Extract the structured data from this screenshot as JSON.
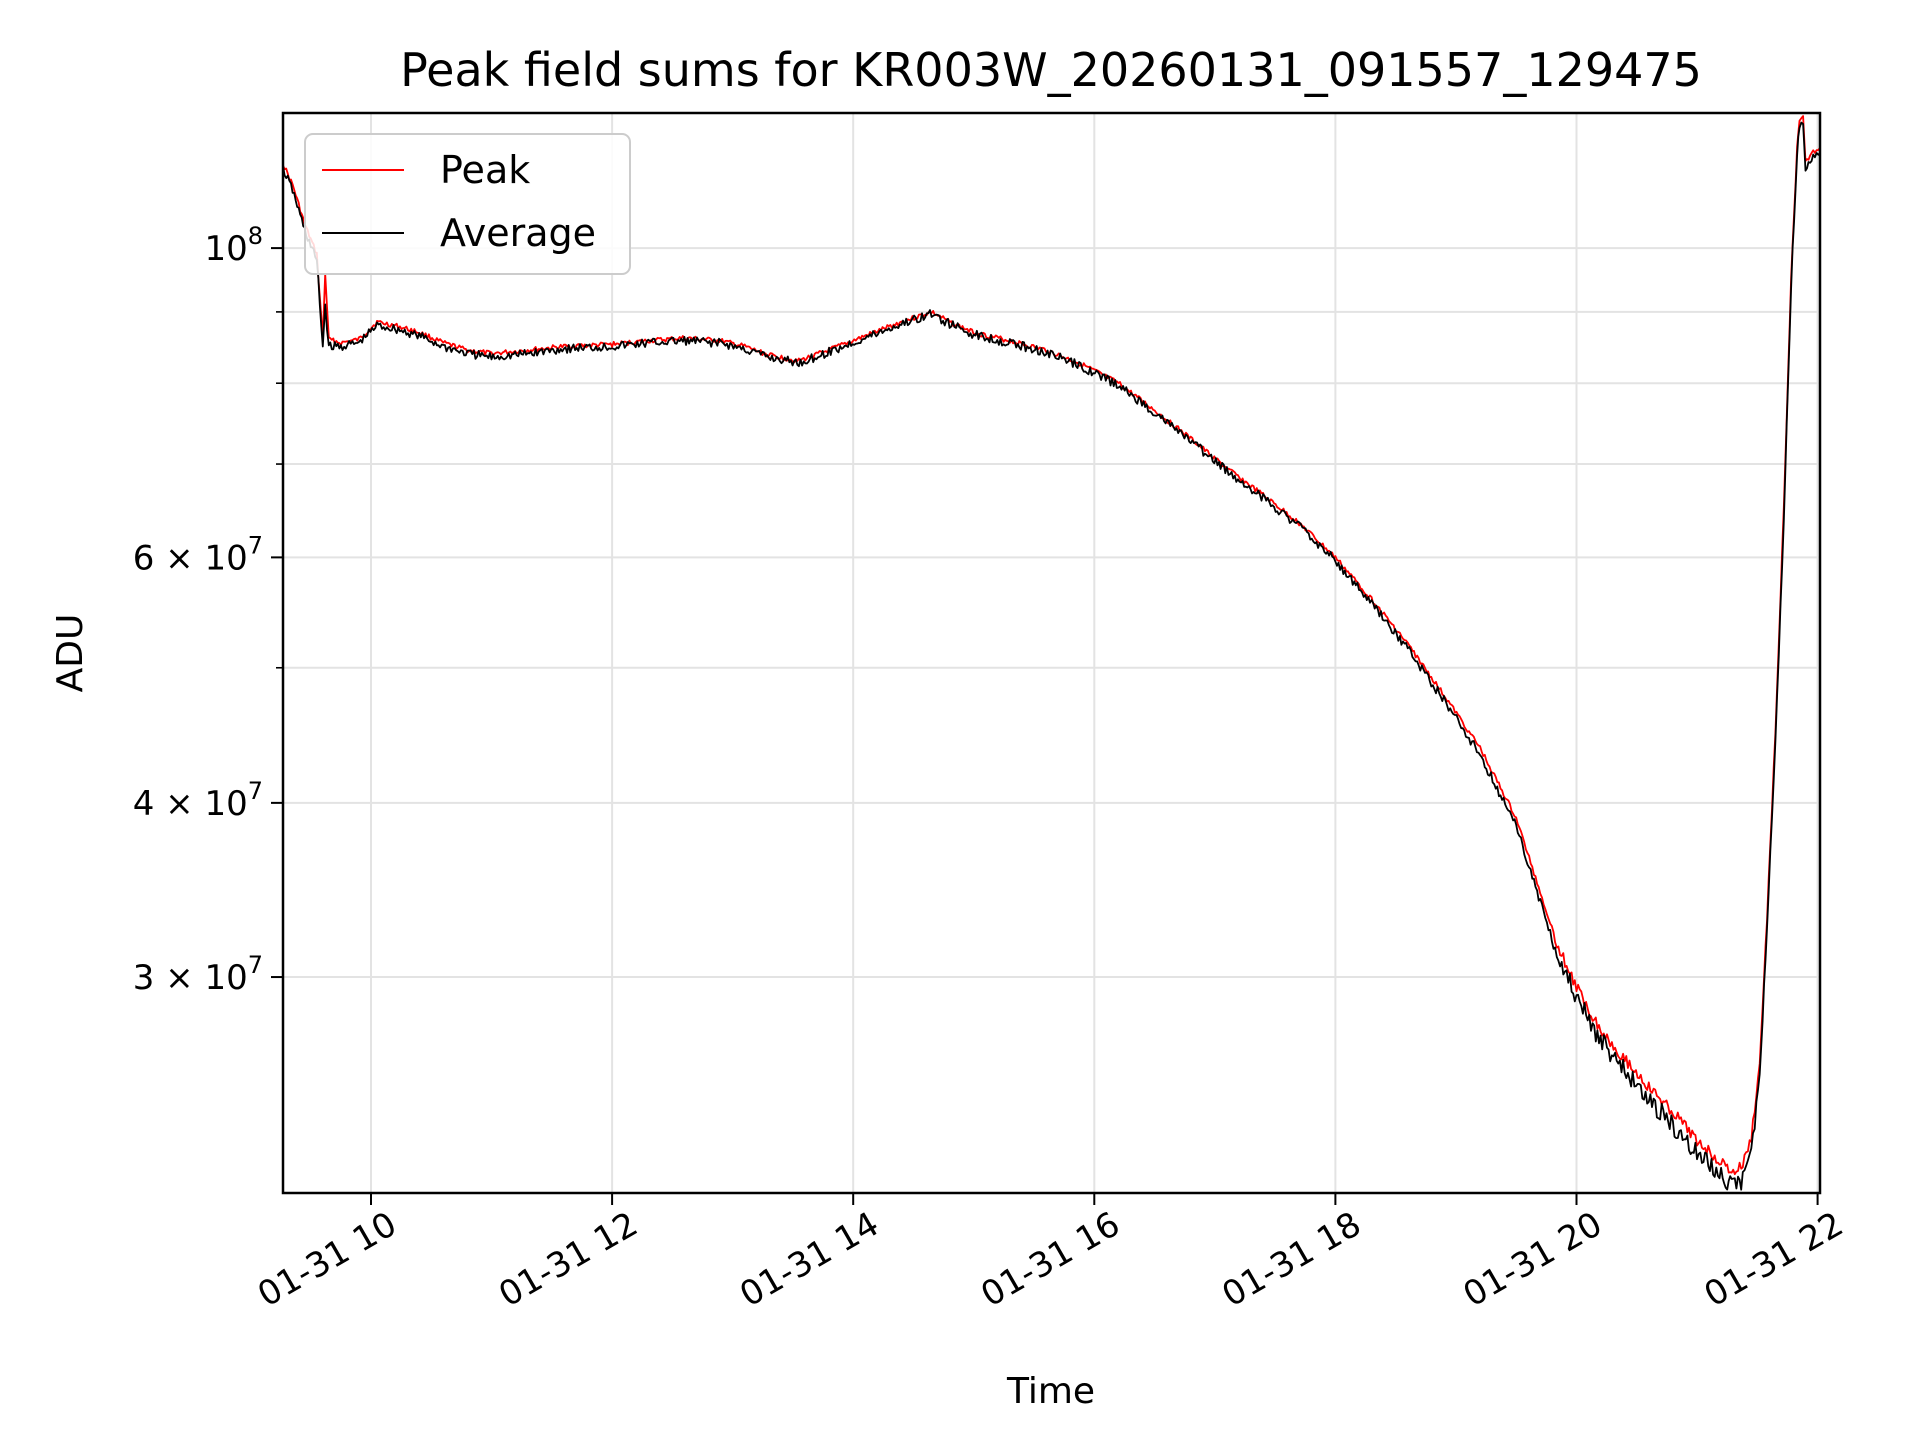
{
  "chart_data": {
    "type": "line",
    "title": "Peak field sums for KR003W_20260131_091557_129475",
    "xlabel": "Time",
    "ylabel": "ADU",
    "yscale": "log",
    "xlim": [
      9.27,
      22.02
    ],
    "ylim": [
      21000000,
      125000000
    ],
    "x_unit": "hours on 2026-01-31",
    "x_ticks": [
      {
        "value": 10,
        "label": "01-31 10"
      },
      {
        "value": 12,
        "label": "01-31 12"
      },
      {
        "value": 14,
        "label": "01-31 14"
      },
      {
        "value": 16,
        "label": "01-31 16"
      },
      {
        "value": 18,
        "label": "01-31 18"
      },
      {
        "value": 20,
        "label": "01-31 20"
      },
      {
        "value": 22,
        "label": "01-31 22"
      }
    ],
    "y_ticks_major": [
      {
        "value": 30000000,
        "mant": "3",
        "exp": "7"
      },
      {
        "value": 40000000,
        "mant": "4",
        "exp": "7"
      },
      {
        "value": 60000000,
        "mant": "6",
        "exp": "7"
      },
      {
        "value": 100000000,
        "mant": "",
        "exp": "8"
      }
    ],
    "y_ticks_minor": [
      50000000,
      70000000,
      80000000,
      90000000
    ],
    "y_tick_times": "×",
    "y_tick_base": "10",
    "grid": true,
    "legend_position": "upper left",
    "series": [
      {
        "name": "Peak",
        "color": "#ff0000",
        "points": [
          [
            9.27,
            115000000
          ],
          [
            9.35,
            111000000
          ],
          [
            9.45,
            104000000
          ],
          [
            9.55,
            99000000
          ],
          [
            9.6,
            86000000
          ],
          [
            9.62,
            96000000
          ],
          [
            9.65,
            86000000
          ],
          [
            9.75,
            85500000
          ],
          [
            9.9,
            86000000
          ],
          [
            10.05,
            88500000
          ],
          [
            10.2,
            88000000
          ],
          [
            10.4,
            87000000
          ],
          [
            10.6,
            85500000
          ],
          [
            10.8,
            84500000
          ],
          [
            11.0,
            84000000
          ],
          [
            11.3,
            84500000
          ],
          [
            11.6,
            85000000
          ],
          [
            12.0,
            85300000
          ],
          [
            12.3,
            85800000
          ],
          [
            12.6,
            86200000
          ],
          [
            12.9,
            85800000
          ],
          [
            13.1,
            85000000
          ],
          [
            13.3,
            83800000
          ],
          [
            13.55,
            83000000
          ],
          [
            13.8,
            84500000
          ],
          [
            14.1,
            86500000
          ],
          [
            14.4,
            88500000
          ],
          [
            14.65,
            90000000
          ],
          [
            14.8,
            88500000
          ],
          [
            15.0,
            87000000
          ],
          [
            15.3,
            85800000
          ],
          [
            15.6,
            84500000
          ],
          [
            15.9,
            82500000
          ],
          [
            16.2,
            80000000
          ],
          [
            16.5,
            76500000
          ],
          [
            16.8,
            73000000
          ],
          [
            17.1,
            69500000
          ],
          [
            17.4,
            66500000
          ],
          [
            17.7,
            63500000
          ],
          [
            18.0,
            60000000
          ],
          [
            18.3,
            56000000
          ],
          [
            18.6,
            52000000
          ],
          [
            18.9,
            47800000
          ],
          [
            19.2,
            43800000
          ],
          [
            19.5,
            39000000
          ],
          [
            19.7,
            34500000
          ],
          [
            19.85,
            31500000
          ],
          [
            20.0,
            29500000
          ],
          [
            20.2,
            27500000
          ],
          [
            20.4,
            26200000
          ],
          [
            20.6,
            25000000
          ],
          [
            20.8,
            24000000
          ],
          [
            21.0,
            22900000
          ],
          [
            21.2,
            22100000
          ],
          [
            21.3,
            21700000
          ],
          [
            21.38,
            22000000
          ],
          [
            21.45,
            23000000
          ],
          [
            21.52,
            26000000
          ],
          [
            21.58,
            33000000
          ],
          [
            21.65,
            45000000
          ],
          [
            21.72,
            65000000
          ],
          [
            21.78,
            95000000
          ],
          [
            21.83,
            118000000
          ],
          [
            21.85,
            123000000
          ],
          [
            21.88,
            124000000
          ],
          [
            21.9,
            115000000
          ],
          [
            21.95,
            117000000
          ],
          [
            22.02,
            118000000
          ]
        ]
      },
      {
        "name": "Average",
        "color": "#000000",
        "points": [
          [
            9.27,
            114000000
          ],
          [
            9.35,
            110000000
          ],
          [
            9.45,
            103000000
          ],
          [
            9.55,
            98000000
          ],
          [
            9.6,
            85000000
          ],
          [
            9.62,
            91000000
          ],
          [
            9.65,
            85000000
          ],
          [
            9.75,
            85000000
          ],
          [
            9.9,
            85500000
          ],
          [
            10.05,
            88000000
          ],
          [
            10.2,
            87500000
          ],
          [
            10.4,
            86500000
          ],
          [
            10.6,
            85000000
          ],
          [
            10.8,
            84000000
          ],
          [
            11.0,
            83500000
          ],
          [
            11.3,
            84000000
          ],
          [
            11.6,
            84700000
          ],
          [
            12.0,
            85000000
          ],
          [
            12.3,
            85500000
          ],
          [
            12.6,
            85800000
          ],
          [
            12.9,
            85500000
          ],
          [
            13.1,
            84600000
          ],
          [
            13.3,
            83500000
          ],
          [
            13.55,
            82700000
          ],
          [
            13.8,
            84200000
          ],
          [
            14.1,
            86200000
          ],
          [
            14.4,
            88200000
          ],
          [
            14.65,
            89700000
          ],
          [
            14.8,
            88200000
          ],
          [
            15.0,
            86700000
          ],
          [
            15.3,
            85500000
          ],
          [
            15.6,
            84200000
          ],
          [
            15.9,
            82200000
          ],
          [
            16.2,
            79700000
          ],
          [
            16.5,
            76200000
          ],
          [
            16.8,
            72700000
          ],
          [
            17.1,
            69200000
          ],
          [
            17.4,
            66200000
          ],
          [
            17.7,
            63200000
          ],
          [
            18.0,
            59700000
          ],
          [
            18.3,
            55600000
          ],
          [
            18.6,
            51600000
          ],
          [
            18.9,
            47400000
          ],
          [
            19.2,
            43300000
          ],
          [
            19.5,
            38500000
          ],
          [
            19.7,
            34000000
          ],
          [
            19.85,
            31000000
          ],
          [
            20.0,
            29000000
          ],
          [
            20.2,
            27000000
          ],
          [
            20.4,
            25700000
          ],
          [
            20.6,
            24500000
          ],
          [
            20.8,
            23500000
          ],
          [
            21.0,
            22400000
          ],
          [
            21.2,
            21600000
          ],
          [
            21.3,
            21200000
          ],
          [
            21.38,
            21500000
          ],
          [
            21.45,
            22500000
          ],
          [
            21.52,
            25500000
          ],
          [
            21.58,
            32500000
          ],
          [
            21.65,
            44000000
          ],
          [
            21.72,
            64000000
          ],
          [
            21.78,
            94000000
          ],
          [
            21.83,
            117000000
          ],
          [
            21.85,
            122000000
          ],
          [
            21.88,
            123000000
          ],
          [
            21.9,
            114000000
          ],
          [
            21.95,
            116000000
          ],
          [
            22.02,
            117000000
          ]
        ]
      }
    ]
  }
}
